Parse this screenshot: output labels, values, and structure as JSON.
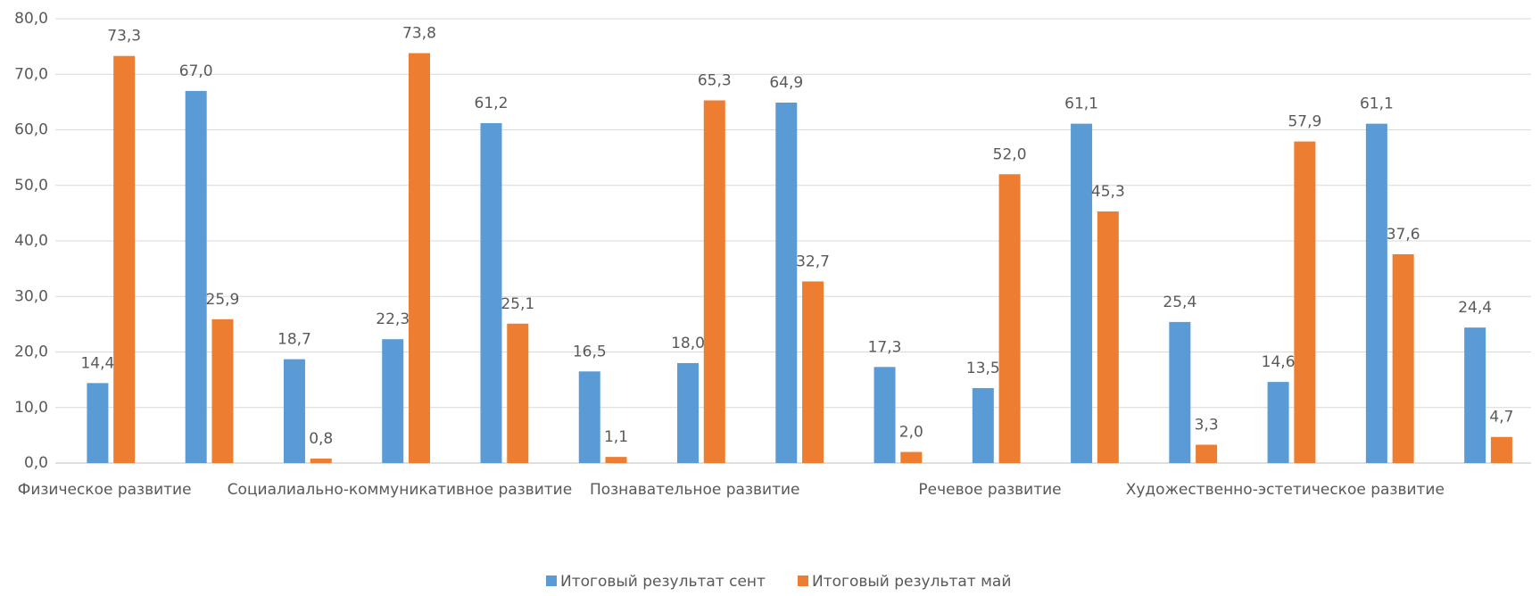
{
  "chart_data": {
    "type": "bar",
    "categories": [
      "Физическое развитие",
      null,
      null,
      "Социалиально-коммуникативное развитие",
      null,
      null,
      "Познавательное развитие",
      null,
      null,
      "Речевое развитие",
      null,
      null,
      "Художественно-эстетическое развитие",
      null,
      null
    ],
    "series": [
      {
        "name": "Итоговый результат сент",
        "color": "#5b9bd5",
        "values": [
          14.4,
          67.0,
          18.7,
          22.3,
          61.2,
          16.5,
          18.0,
          64.9,
          17.3,
          13.5,
          61.1,
          25.4,
          14.6,
          61.1,
          24.4
        ],
        "value_labels": [
          "14,4",
          "67,0",
          "18,7",
          "22,3",
          "61,2",
          "16,5",
          "18,0",
          "64,9",
          "17,3",
          "13,5",
          "61,1",
          "25,4",
          "14,6",
          "61,1",
          "24,4"
        ]
      },
      {
        "name": "Итоговый результат май",
        "color": "#ed7d31",
        "values": [
          73.3,
          25.9,
          0.8,
          73.8,
          25.1,
          1.1,
          65.3,
          32.7,
          2.0,
          52.0,
          45.3,
          3.3,
          57.9,
          37.6,
          4.7
        ],
        "value_labels": [
          "73,3",
          "25,9",
          "0,8",
          "73,8",
          "25,1",
          "1,1",
          "65,3",
          "32,7",
          "2,0",
          "52,0",
          "45,3",
          "3,3",
          "57,9",
          "37,6",
          "4,7"
        ]
      }
    ],
    "ylim": [
      0,
      80
    ],
    "yticks": [
      {
        "value": 0,
        "label": "0,0"
      },
      {
        "value": 10,
        "label": "10,0"
      },
      {
        "value": 20,
        "label": "20,0"
      },
      {
        "value": 30,
        "label": "30,0"
      },
      {
        "value": 40,
        "label": "40,0"
      },
      {
        "value": 50,
        "label": "50,0"
      },
      {
        "value": 60,
        "label": "60,0"
      },
      {
        "value": 70,
        "label": "70,0"
      },
      {
        "value": 80,
        "label": "80,0"
      }
    ],
    "grid": true,
    "legend": "bottom"
  }
}
